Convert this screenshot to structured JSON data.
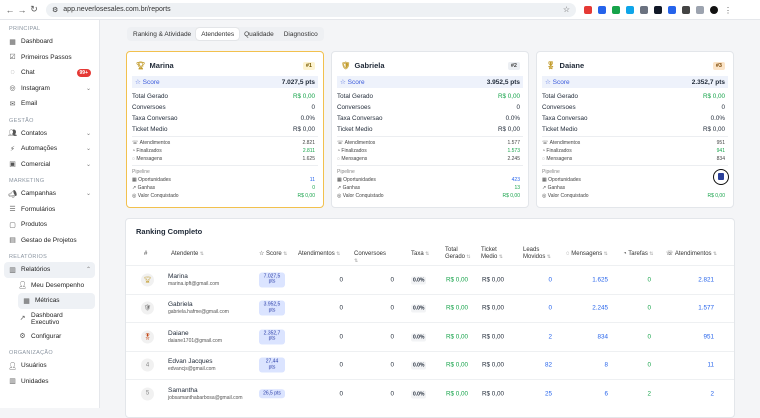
{
  "browser": {
    "url": "app.neverlosesales.com.br/reports",
    "back": "←",
    "forward": "→",
    "reload": "↻"
  },
  "sidebar": {
    "sections": [
      {
        "title": "PRINCIPAL",
        "items": [
          {
            "label": "Dashboard",
            "icon": "dashboard-icon"
          },
          {
            "label": "Primeiros Passos",
            "icon": "checklist-icon"
          },
          {
            "label": "Chat",
            "icon": "chat-icon",
            "badge": "99+"
          },
          {
            "label": "Instagram",
            "icon": "instagram-icon"
          },
          {
            "label": "Email",
            "icon": "email-icon"
          }
        ]
      },
      {
        "title": "GESTÃO",
        "items": [
          {
            "label": "Contatos",
            "icon": "users-icon"
          },
          {
            "label": "Automações",
            "icon": "automation-icon"
          },
          {
            "label": "Comercial",
            "icon": "commercial-icon"
          }
        ]
      },
      {
        "title": "MARKETING",
        "items": [
          {
            "label": "Campanhas",
            "icon": "megaphone-icon"
          },
          {
            "label": "Formulários",
            "icon": "form-icon"
          },
          {
            "label": "Produtos",
            "icon": "box-icon"
          },
          {
            "label": "Gestao de Projetos",
            "icon": "project-icon"
          }
        ]
      },
      {
        "title": "RELATÓRIOS",
        "items": [
          {
            "label": "Relatórios",
            "icon": "chart-icon"
          }
        ],
        "subitems": [
          {
            "label": "Meu Desempenho",
            "icon": "user-icon"
          },
          {
            "label": "Métricas",
            "icon": "metrics-icon"
          },
          {
            "label": "Dashboard Executivo",
            "icon": "trend-icon"
          },
          {
            "label": "Configurar",
            "icon": "gear-icon"
          }
        ]
      },
      {
        "title": "ORGANIZAÇÃO",
        "items": [
          {
            "label": "Usuários",
            "icon": "user-icon"
          },
          {
            "label": "Unidades",
            "icon": "building-icon"
          }
        ]
      }
    ]
  },
  "tabs": [
    "Ranking & Atividade",
    "Atendentes",
    "Qualidade",
    "Diagnostico"
  ],
  "cards": [
    {
      "name": "Marina",
      "rank": "#1",
      "score_label": "Score",
      "score": "7.027,5 pts",
      "total_label": "Total Gerado",
      "total": "R$ 0,00",
      "conv_label": "Conversoes",
      "conv": "0",
      "taxa_label": "Taxa Conversao",
      "taxa": "0.0%",
      "ticket_label": "Ticket Medio",
      "ticket": "R$ 0,00",
      "at_label": "Atendimentos",
      "at": "2.821",
      "fin_label": "Finalizados",
      "fin": "2.811",
      "msg_label": "Mensagens",
      "msg": "1.625",
      "pipe_label": "Pipeline",
      "op_label": "Oportunidades",
      "op": "11",
      "gan_label": "Ganhas",
      "gan": "0",
      "vc_label": "Valor Conquistado",
      "vc": "R$ 0,00"
    },
    {
      "name": "Gabriela",
      "rank": "#2",
      "score_label": "Score",
      "score": "3.952,5 pts",
      "total_label": "Total Gerado",
      "total": "R$ 0,00",
      "conv_label": "Conversoes",
      "conv": "0",
      "taxa_label": "Taxa Conversao",
      "taxa": "0.0%",
      "ticket_label": "Ticket Medio",
      "ticket": "R$ 0,00",
      "at_label": "Atendimentos",
      "at": "1.577",
      "fin_label": "Finalizados",
      "fin": "1.573",
      "msg_label": "Mensagens",
      "msg": "2.245",
      "pipe_label": "Pipeline",
      "op_label": "Oportunidades",
      "op": "423",
      "gan_label": "Ganhas",
      "gan": "13",
      "vc_label": "Valor Conquistado",
      "vc": "R$ 0,00"
    },
    {
      "name": "Daiane",
      "rank": "#3",
      "score_label": "Score",
      "score": "2.352,7 pts",
      "total_label": "Total Gerado",
      "total": "R$ 0,00",
      "conv_label": "Conversoes",
      "conv": "0",
      "taxa_label": "Taxa Conversao",
      "taxa": "0.0%",
      "ticket_label": "Ticket Medio",
      "ticket": "R$ 0,00",
      "at_label": "Atendimentos",
      "at": "951",
      "fin_label": "Finalizados",
      "fin": "941",
      "msg_label": "Mensagens",
      "msg": "834",
      "pipe_label": "Pipeline",
      "op_label": "Oportunidades",
      "op": "",
      "gan_label": "Ganhas",
      "gan": "",
      "vc_label": "Valor Conquistado",
      "vc": "R$ 0,00"
    }
  ],
  "ranking": {
    "title": "Ranking Completo",
    "headers": [
      "#",
      "Atendente",
      "Score",
      "Atendimentos",
      "Conversoes",
      "Taxa",
      "Total Gerado",
      "Ticket Medio",
      "Leads Movidos",
      "Mensagens",
      "Tarefas",
      "Atendimentos"
    ],
    "rows": [
      {
        "pos": "",
        "name": "Marina",
        "email": "marina.ipft@gmail.com",
        "score": "7.027,5 pts",
        "at": "0",
        "conv": "0",
        "taxa": "0.0%",
        "total": "R$ 0,00",
        "ticket": "R$ 0,00",
        "leads": "0",
        "msgs": "1.625",
        "tarefas": "0",
        "at2": "2.821"
      },
      {
        "pos": "",
        "name": "Gabriela",
        "email": "gabriela.hafme@gmail.com",
        "score": "3.952,5 pts",
        "at": "0",
        "conv": "0",
        "taxa": "0.0%",
        "total": "R$ 0,00",
        "ticket": "R$ 0,00",
        "leads": "0",
        "msgs": "2.245",
        "tarefas": "0",
        "at2": "1.577"
      },
      {
        "pos": "",
        "name": "Daiane",
        "email": "daiane1701@gmail.com",
        "score": "2.352,7 pts",
        "at": "0",
        "conv": "0",
        "taxa": "0.0%",
        "total": "R$ 0,00",
        "ticket": "R$ 0,00",
        "leads": "2",
        "msgs": "834",
        "tarefas": "0",
        "at2": "951"
      },
      {
        "pos": "4",
        "name": "Edvan Jacques",
        "email": "edvancjs@gmail.com",
        "score": "27,44 pts",
        "at": "0",
        "conv": "0",
        "taxa": "0.0%",
        "total": "R$ 0,00",
        "ticket": "R$ 0,00",
        "leads": "82",
        "msgs": "8",
        "tarefas": "0",
        "at2": "11"
      },
      {
        "pos": "5",
        "name": "Samantha",
        "email": "jobsamanthabarbosa@gmail.com",
        "score": "26,5 pts",
        "at": "0",
        "conv": "0",
        "taxa": "0.0%",
        "total": "R$ 0,00",
        "ticket": "R$ 0,00",
        "leads": "25",
        "msgs": "6",
        "tarefas": "2",
        "at2": "2"
      }
    ]
  },
  "colors": {
    "accent": "#3b5bdb",
    "green": "#16a34a",
    "gold": "#f2c14e",
    "badge": "#e53935"
  }
}
